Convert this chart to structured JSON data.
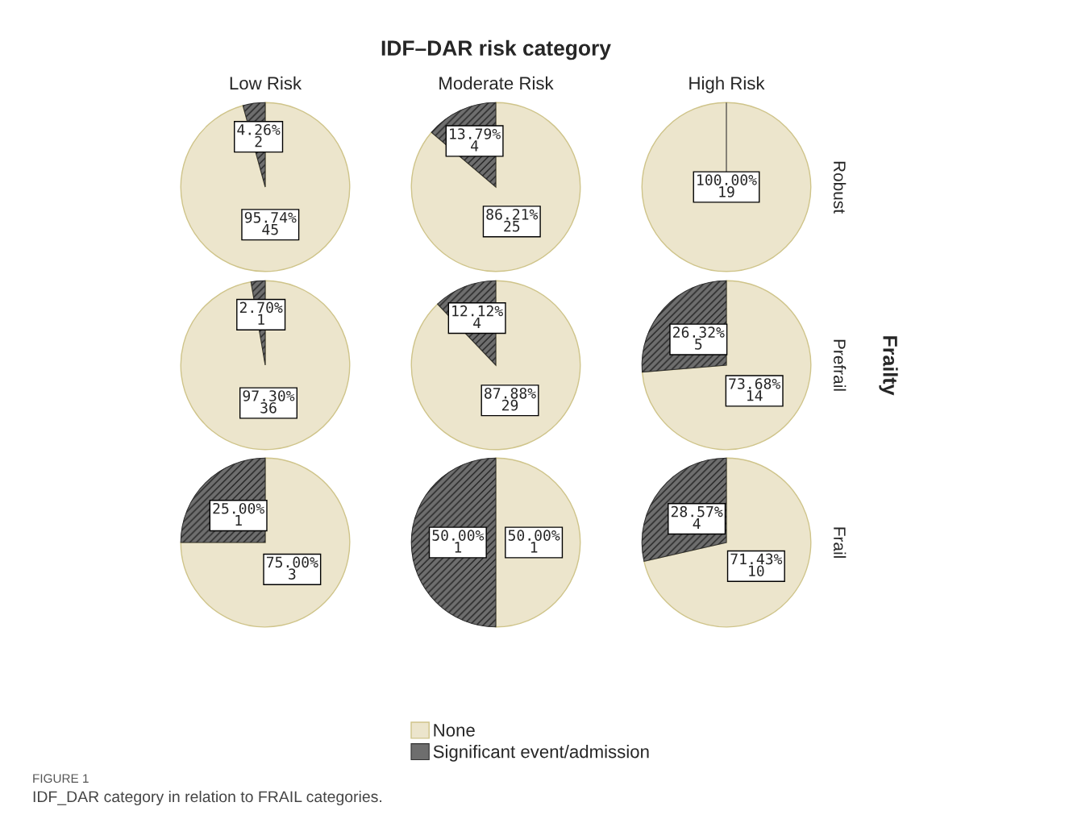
{
  "chart_data": [
    {
      "type": "pie",
      "title": "Low Risk",
      "legend": "bottom",
      "categories": [
        "None",
        "Significant event/admission"
      ],
      "values": [
        45,
        2
      ],
      "colors": [
        "#ece5cc",
        "#6e6e6e"
      ],
      "value_labels": [
        "95.74%\n45",
        "4.26%\n2"
      ],
      "annotations": [
        "IDF–DAR risk category",
        "Frailty",
        "FIGURE 1",
        "IDF_DAR category in relation to FRAIL categories."
      ]
    },
    {
      "type": "pie",
      "title": "Moderate Risk",
      "categories": [
        null,
        null
      ],
      "values": [
        25,
        4
      ],
      "colors": [
        "#ece5cc",
        "#6e6e6e"
      ],
      "value_labels": [
        "86.21%\n25",
        "13.79%\n4"
      ]
    },
    {
      "type": "pie",
      "title": "High Risk",
      "y2label": "Robust",
      "categories": [
        null,
        null
      ],
      "values": [
        19,
        0
      ],
      "colors": [
        "#ece5cc",
        "#6e6e6e"
      ],
      "value_labels": [
        "100.00%\n19",
        null
      ]
    },
    {
      "type": "pie",
      "categories": [
        null,
        null
      ],
      "values": [
        36,
        1
      ],
      "colors": [
        "#ece5cc",
        "#6e6e6e"
      ],
      "value_labels": [
        "97.30%\n36",
        "2.70%\n1"
      ]
    },
    {
      "type": "pie",
      "categories": [
        null,
        null
      ],
      "values": [
        29,
        4
      ],
      "colors": [
        "#ece5cc",
        "#6e6e6e"
      ],
      "value_labels": [
        "87.88%\n29",
        "12.12%\n4"
      ]
    },
    {
      "type": "pie",
      "y2label": "Prefrail",
      "categories": [
        null,
        null
      ],
      "values": [
        14,
        5
      ],
      "colors": [
        "#ece5cc",
        "#6e6e6e"
      ],
      "value_labels": [
        "73.68%\n14",
        "26.32%\n5"
      ]
    },
    {
      "type": "pie",
      "categories": [
        null,
        null
      ],
      "values": [
        3,
        1
      ],
      "colors": [
        "#ece5cc",
        "#6e6e6e"
      ],
      "value_labels": [
        "75.00%\n3",
        "25.00%\n1"
      ]
    },
    {
      "type": "pie",
      "categories": [
        null,
        null
      ],
      "values": [
        1,
        1
      ],
      "colors": [
        "#ece5cc",
        "#6e6e6e"
      ],
      "value_labels": [
        "50.00%\n1",
        "50.00%\n1"
      ]
    },
    {
      "type": "pie",
      "y2label": "Frail",
      "categories": [
        null,
        null
      ],
      "values": [
        10,
        4
      ],
      "colors": [
        "#ece5cc",
        "#6e6e6e"
      ],
      "value_labels": [
        "71.43%\n10",
        "28.57%\n4"
      ]
    }
  ]
}
